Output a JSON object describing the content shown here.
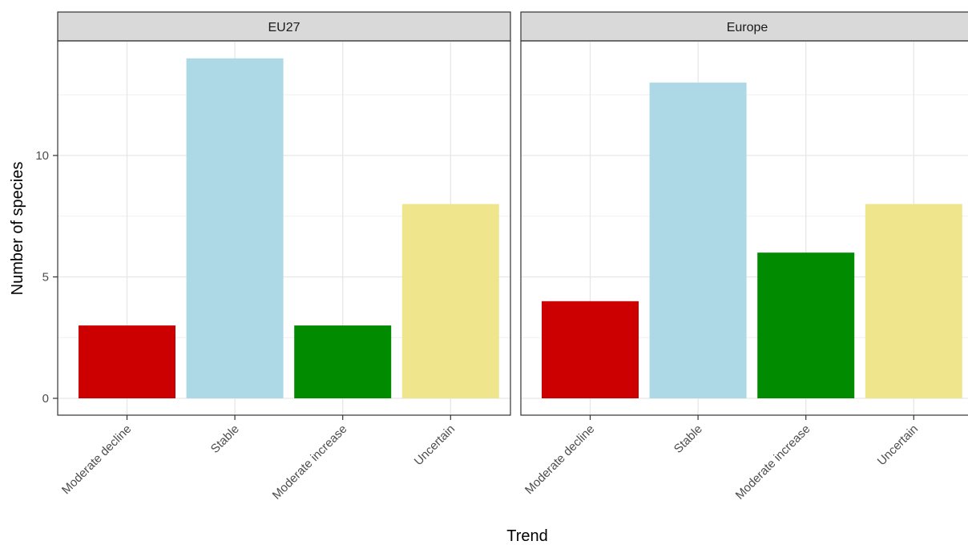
{
  "chart_data": {
    "type": "bar",
    "xlabel": "Trend",
    "ylabel": "Number of species",
    "ylim": [
      0,
      14.7
    ],
    "yticks": [
      0,
      5,
      10
    ],
    "grid": true,
    "legend": "none",
    "categories": [
      "Moderate decline",
      "Stable",
      "Moderate increase",
      "Uncertain"
    ],
    "category_colors": {
      "Moderate decline": "#cc0000",
      "Stable": "#add8e6",
      "Moderate increase": "#008b00",
      "Uncertain": "#eee58c"
    },
    "panels": [
      {
        "name": "EU27",
        "values": [
          3,
          14,
          3,
          8
        ]
      },
      {
        "name": "Europe",
        "values": [
          4,
          13,
          6,
          8
        ]
      }
    ]
  }
}
